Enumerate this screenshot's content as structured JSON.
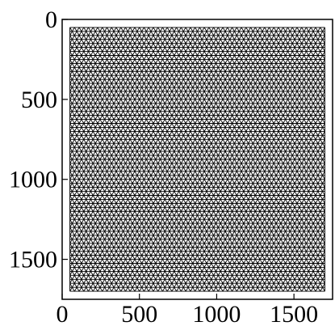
{
  "chart_data": {
    "type": "mesh",
    "description_visible": "triangular mesh on square domain",
    "x_ticks": [
      "0",
      "500",
      "1000",
      "1500"
    ],
    "y_ticks": [
      "0",
      "500",
      "1000",
      "1500"
    ],
    "x_tick_values": [
      0,
      500,
      1000,
      1500
    ],
    "y_tick_values": [
      0,
      500,
      1000,
      1500
    ],
    "xlim": [
      0,
      1750
    ],
    "ylim": [
      0,
      1750
    ],
    "y_inverted": true,
    "mesh": {
      "domain_x": [
        50,
        1700
      ],
      "domain_y": [
        50,
        1700
      ],
      "nodes_per_side": 56,
      "element": "triangle"
    },
    "frame": true,
    "grid": false,
    "colors": {
      "mesh": "#000000",
      "frame": "#000000",
      "background": "#ffffff"
    }
  }
}
